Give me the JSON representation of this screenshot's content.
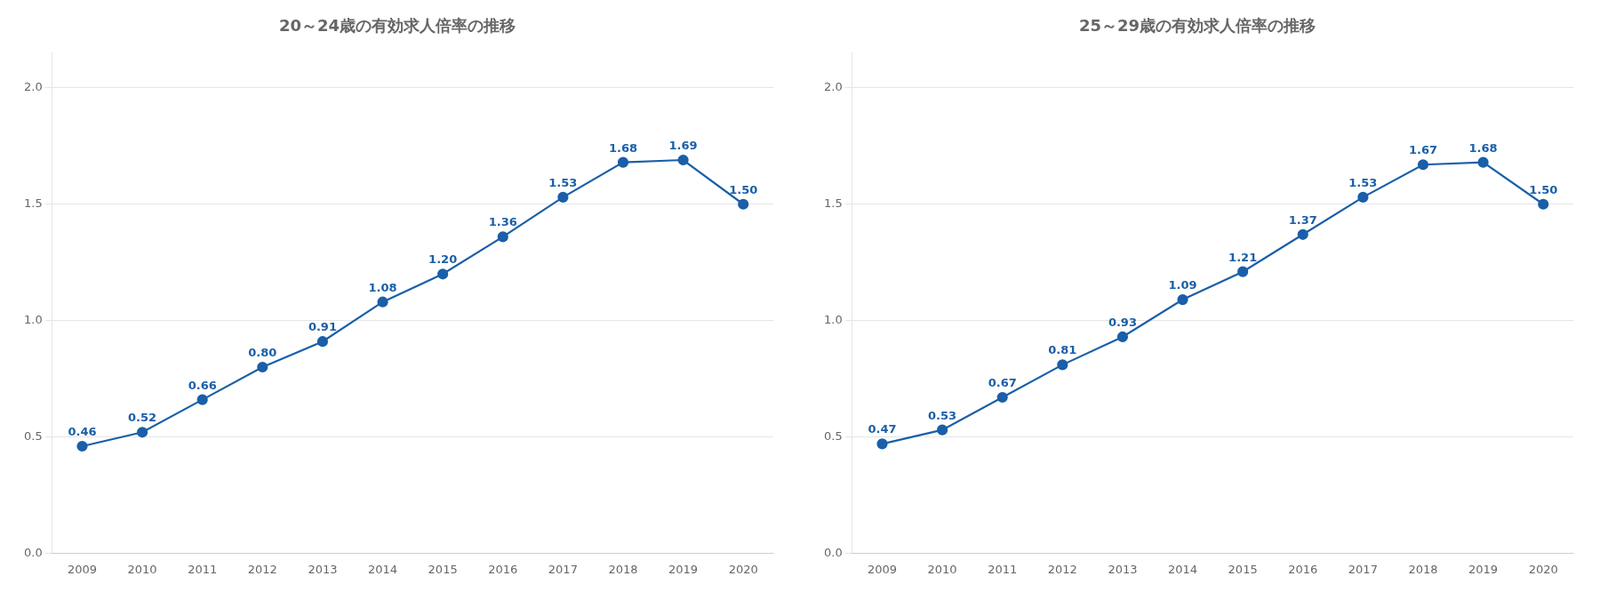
{
  "chart_data": [
    {
      "type": "line",
      "title": "20～24歳の有効求人倍率の推移",
      "categories": [
        "2009",
        "2010",
        "2011",
        "2012",
        "2013",
        "2014",
        "2015",
        "2016",
        "2017",
        "2018",
        "2019",
        "2020"
      ],
      "values": [
        0.46,
        0.52,
        0.66,
        0.8,
        0.91,
        1.08,
        1.2,
        1.36,
        1.53,
        1.68,
        1.69,
        1.5
      ],
      "value_labels": [
        "0.46",
        "0.52",
        "0.66",
        "0.80",
        "0.91",
        "1.08",
        "1.20",
        "1.36",
        "1.53",
        "1.68",
        "1.69",
        "1.50"
      ],
      "color": "#1a5fa8",
      "marker": "circle",
      "ylim": [
        0,
        2.15
      ],
      "yticks": [
        {
          "value": 0,
          "label": "0.0"
        },
        0.5,
        {
          "value": 1,
          "label": "1.0"
        },
        1.5,
        {
          "value": 2,
          "label": "2.0"
        }
      ],
      "grid": true,
      "data_labels": true
    },
    {
      "type": "line",
      "title": "25～29歳の有効求人倍率の推移",
      "categories": [
        "2009",
        "2010",
        "2011",
        "2012",
        "2013",
        "2014",
        "2015",
        "2016",
        "2017",
        "2018",
        "2019",
        "2020"
      ],
      "values": [
        0.47,
        0.53,
        0.67,
        0.81,
        0.93,
        1.09,
        1.21,
        1.37,
        1.53,
        1.67,
        1.68,
        1.5
      ],
      "value_labels": [
        "0.47",
        "0.53",
        "0.67",
        "0.81",
        "0.93",
        "1.09",
        "1.21",
        "1.37",
        "1.53",
        "1.67",
        "1.68",
        "1.50"
      ],
      "color": "#1a5fa8",
      "marker": "circle",
      "ylim": [
        0,
        2.15
      ],
      "yticks": [
        {
          "value": 0,
          "label": "0.0"
        },
        0.5,
        {
          "value": 1,
          "label": "1.0"
        },
        1.5,
        {
          "value": 2,
          "label": "2.0"
        }
      ],
      "grid": true,
      "data_labels": true
    }
  ]
}
